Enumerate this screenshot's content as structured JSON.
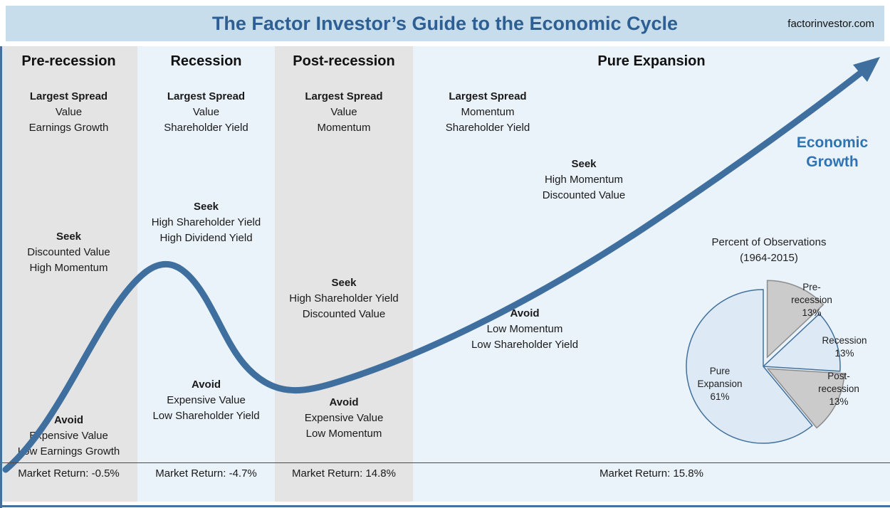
{
  "header": {
    "title": "The Factor Investor’s Guide to the Economic Cycle",
    "site": "factorinvestor.com"
  },
  "labels": {
    "largest_spread": "Largest Spread",
    "seek": "Seek",
    "avoid": "Avoid"
  },
  "economic_growth_label": "Economic Growth",
  "phases": [
    {
      "name": "Pre-recession",
      "largest_spread": [
        "Value",
        "Earnings Growth"
      ],
      "seek": [
        "Discounted Value",
        "High Momentum"
      ],
      "avoid": [
        "Expensive Value",
        "Low Earnings Growth"
      ],
      "market_return": "Market Return: -0.5%"
    },
    {
      "name": "Recession",
      "largest_spread": [
        "Value",
        "Shareholder Yield"
      ],
      "seek": [
        "High Shareholder Yield",
        "High Dividend Yield"
      ],
      "avoid": [
        "Expensive Value",
        "Low Shareholder Yield"
      ],
      "market_return": "Market Return: -4.7%"
    },
    {
      "name": "Post-recession",
      "largest_spread": [
        "Value",
        "Momentum"
      ],
      "seek": [
        "High Shareholder Yield",
        "Discounted Value"
      ],
      "avoid": [
        "Expensive Value",
        "Low Momentum"
      ],
      "market_return": "Market Return: 14.8%"
    },
    {
      "name": "Pure Expansion",
      "largest_spread": [
        "Momentum",
        "Shareholder Yield"
      ],
      "seek": [
        "High Momentum",
        "Discounted Value"
      ],
      "avoid": [
        "Low Momentum",
        "Low Shareholder Yield"
      ],
      "market_return": "Market Return: 15.8%"
    }
  ],
  "chart_data": {
    "type": "pie",
    "title": "Percent of Observations",
    "subtitle": "(1964-2015)",
    "start_angle_deg": 0,
    "direction": "clockwise",
    "legend_position": "labels-on-slices",
    "slices": [
      {
        "label": "Pre-recession",
        "value": 13,
        "pct": "13%",
        "color": "#cbcbcb",
        "stroke": "#8c8c8c",
        "explode": 14
      },
      {
        "label": "Recession",
        "value": 13,
        "pct": "13%",
        "color": "#dde9f4",
        "stroke": "#41719c",
        "explode": 0
      },
      {
        "label": "Post-recession",
        "value": 13,
        "pct": "13%",
        "color": "#cbcbcb",
        "stroke": "#8c8c8c",
        "explode": 7
      },
      {
        "label": "Pure Expansion",
        "value": 61,
        "pct": "61%",
        "color": "#dde9f4",
        "stroke": "#41719c",
        "explode": 0
      }
    ]
  },
  "colors": {
    "header_bg": "#c7ddec",
    "title_text": "#2e5f93",
    "economic_growth_text": "#2e74b5",
    "curve": "#3f6f9e",
    "column_gray": "#e4e4e4",
    "column_blue": "#eaf2fa"
  }
}
